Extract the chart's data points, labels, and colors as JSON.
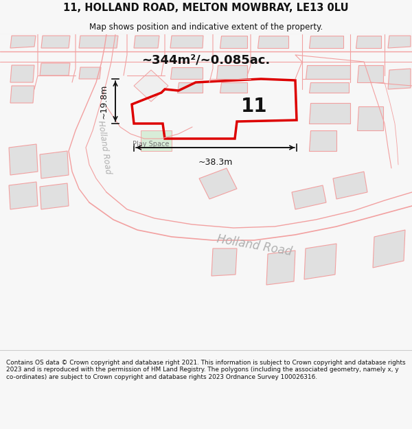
{
  "title": "11, HOLLAND ROAD, MELTON MOWBRAY, LE13 0LU",
  "subtitle": "Map shows position and indicative extent of the property.",
  "footer": "Contains OS data © Crown copyright and database right 2021. This information is subject to Crown copyright and database rights 2023 and is reproduced with the permission of HM Land Registry. The polygons (including the associated geometry, namely x, y co-ordinates) are subject to Crown copyright and database rights 2023 Ordnance Survey 100026316.",
  "area_label": "~344m²/~0.085ac.",
  "width_label": "~38.3m",
  "height_label": "~19.8m",
  "play_space_label": "Play Space",
  "number_label": "11",
  "road_label": "Holland Road",
  "bg_color": "#f7f7f7",
  "map_bg": "#ffffff",
  "property_color": "#dd0000",
  "road_color": "#f2a0a0",
  "building_fill": "#e0e0e0",
  "building_fill_light": "#efefef",
  "title_color": "#111111",
  "footer_color": "#111111",
  "dim_color": "#111111",
  "road_text_color": "#b0b0b0",
  "playspace_color": "#d8edd8"
}
